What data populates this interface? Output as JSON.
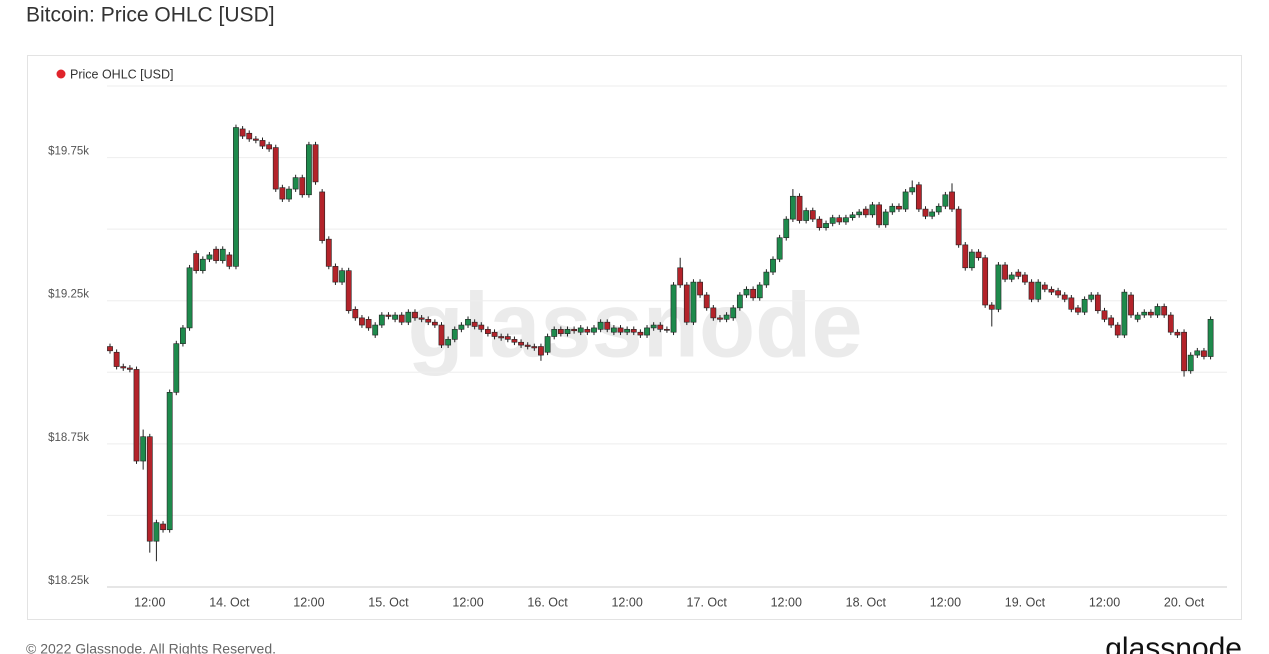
{
  "chart_data": {
    "type": "candlestick",
    "title": "Bitcoin: Price OHLC [USD]",
    "watermark": "glassnode",
    "series": [
      {
        "name": "Price OHLC [USD]",
        "color": "#e0242b"
      }
    ],
    "up_color": "#1e8a4c",
    "down_color": "#b3232a",
    "ylim": [
      18250,
      20000
    ],
    "yticks": [
      {
        "value": 18250,
        "label": "$18.25k"
      },
      {
        "value": 18750,
        "label": "$18.75k"
      },
      {
        "value": 19250,
        "label": "$19.25k"
      },
      {
        "value": 19750,
        "label": "$19.75k"
      }
    ],
    "grid": true,
    "categories": [
      null,
      null,
      null,
      null,
      null,
      null,
      "12:00",
      null,
      null,
      null,
      null,
      null,
      null,
      null,
      null,
      null,
      null,
      null,
      "14. Oct",
      null,
      null,
      null,
      null,
      null,
      null,
      null,
      null,
      null,
      null,
      null,
      "12:00",
      null,
      null,
      null,
      null,
      null,
      null,
      null,
      null,
      null,
      null,
      null,
      "15. Oct",
      null,
      null,
      null,
      null,
      null,
      null,
      null,
      null,
      null,
      null,
      null,
      "12:00",
      null,
      null,
      null,
      null,
      null,
      null,
      null,
      null,
      null,
      null,
      null,
      "16. Oct",
      null,
      null,
      null,
      null,
      null,
      null,
      null,
      null,
      null,
      null,
      null,
      "12:00",
      null,
      null,
      null,
      null,
      null,
      null,
      null,
      null,
      null,
      null,
      null,
      "17. Oct",
      null,
      null,
      null,
      null,
      null,
      null,
      null,
      null,
      null,
      null,
      null,
      "12:00",
      null,
      null,
      null,
      null,
      null,
      null,
      null,
      null,
      null,
      null,
      null,
      "18. Oct",
      null,
      null,
      null,
      null,
      null,
      null,
      null,
      null,
      null,
      null,
      null,
      "12:00",
      null,
      null,
      null,
      null,
      null,
      null,
      null,
      null,
      null,
      null,
      null,
      "19. Oct",
      null,
      null,
      null,
      null,
      null,
      null,
      null,
      null,
      null,
      null,
      null,
      "12:00",
      null,
      null,
      null,
      null,
      null,
      null,
      null,
      null,
      null,
      null,
      null,
      "20. Oct",
      null,
      null,
      null,
      null
    ],
    "open": [
      19090,
      19070,
      19020,
      19015,
      19010,
      18690,
      18775,
      18410,
      18470,
      18450,
      18930,
      19100,
      19155,
      19415,
      19355,
      19395,
      19430,
      19390,
      19410,
      19370,
      19850,
      19835,
      19815,
      19810,
      19795,
      19785,
      19645,
      19605,
      19640,
      19680,
      19620,
      19795,
      19630,
      19465,
      19370,
      19315,
      19355,
      19220,
      19190,
      19185,
      19130,
      19165,
      19200,
      19185,
      19200,
      19175,
      19210,
      19190,
      19185,
      19175,
      19165,
      19095,
      19115,
      19150,
      19165,
      19175,
      19165,
      19150,
      19140,
      19125,
      19125,
      19115,
      19105,
      19095,
      19090,
      19090,
      19070,
      19125,
      19150,
      19135,
      19150,
      19140,
      19150,
      19140,
      19150,
      19175,
      19140,
      19155,
      19140,
      19150,
      19140,
      19130,
      19155,
      19165,
      19150,
      19140,
      19365,
      19305,
      19175,
      19315,
      19270,
      19225,
      19190,
      19185,
      19190,
      19225,
      19270,
      19290,
      19260,
      19305,
      19350,
      19395,
      19470,
      19535,
      19615,
      19530,
      19565,
      19535,
      19505,
      19520,
      19540,
      19525,
      19540,
      19550,
      19570,
      19550,
      19585,
      19515,
      19560,
      19580,
      19570,
      19630,
      19655,
      19570,
      19545,
      19560,
      19580,
      19630,
      19570,
      19445,
      19365,
      19420,
      19400,
      19235,
      19220,
      19375,
      19325,
      19350,
      19340,
      19315,
      19255,
      19305,
      19290,
      19285,
      19270,
      19260,
      19225,
      19210,
      19255,
      19270,
      19215,
      19190,
      19165,
      19130,
      19270,
      19185,
      19200,
      19210,
      19200,
      19230,
      19200,
      19140,
      19140,
      19005,
      19060,
      19075,
      19055
    ],
    "high": [
      19100,
      19080,
      19030,
      19025,
      19020,
      18800,
      18785,
      18485,
      18480,
      18940,
      19110,
      19165,
      19375,
      19425,
      19405,
      19420,
      19440,
      19440,
      19420,
      19865,
      19860,
      19845,
      19825,
      19820,
      19805,
      19795,
      19655,
      19650,
      19690,
      19690,
      19805,
      19805,
      19640,
      19475,
      19380,
      19365,
      19365,
      19230,
      19200,
      19195,
      19175,
      19210,
      19210,
      19210,
      19210,
      19220,
      19220,
      19200,
      19195,
      19185,
      19175,
      19125,
      19160,
      19175,
      19195,
      19185,
      19175,
      19160,
      19150,
      19135,
      19135,
      19125,
      19115,
      19105,
      19100,
      19100,
      19135,
      19160,
      19160,
      19160,
      19160,
      19165,
      19160,
      19165,
      19185,
      19185,
      19165,
      19165,
      19160,
      19160,
      19150,
      19165,
      19175,
      19175,
      19160,
      19315,
      19400,
      19315,
      19325,
      19325,
      19280,
      19235,
      19200,
      19210,
      19235,
      19280,
      19300,
      19300,
      19315,
      19360,
      19405,
      19480,
      19545,
      19640,
      19625,
      19575,
      19575,
      19545,
      19530,
      19550,
      19550,
      19550,
      19560,
      19570,
      19580,
      19595,
      19595,
      19570,
      19590,
      19590,
      19640,
      19670,
      19665,
      19580,
      19570,
      19590,
      19630,
      19660,
      19580,
      19455,
      19430,
      19430,
      19410,
      19245,
      19385,
      19385,
      19350,
      19360,
      19350,
      19325,
      19325,
      19315,
      19300,
      19295,
      19280,
      19270,
      19235,
      19265,
      19280,
      19280,
      19225,
      19200,
      19175,
      19290,
      19280,
      19210,
      19220,
      19220,
      19240,
      19240,
      19210,
      19150,
      19150,
      19070,
      19085,
      19085,
      19195
    ],
    "low": [
      19065,
      19010,
      19005,
      19000,
      18680,
      18660,
      18370,
      18340,
      18440,
      18440,
      18920,
      19090,
      19145,
      19345,
      19345,
      19385,
      19380,
      19380,
      19360,
      19360,
      19815,
      19805,
      19800,
      19780,
      19770,
      19630,
      19595,
      19595,
      19630,
      19610,
      19610,
      19655,
      19450,
      19360,
      19305,
      19305,
      19205,
      19180,
      19155,
      19145,
      19120,
      19155,
      19185,
      19175,
      19165,
      19165,
      19180,
      19175,
      19165,
      19155,
      19085,
      19085,
      19105,
      19140,
      19155,
      19150,
      19140,
      19125,
      19115,
      19110,
      19105,
      19095,
      19085,
      19080,
      19075,
      19040,
      19060,
      19115,
      19125,
      19125,
      19135,
      19130,
      19130,
      19130,
      19140,
      19140,
      19130,
      19130,
      19130,
      19130,
      19120,
      19120,
      19145,
      19140,
      19138,
      19130,
      19295,
      19165,
      19165,
      19260,
      19215,
      19180,
      19175,
      19175,
      19180,
      19215,
      19260,
      19250,
      19250,
      19295,
      19340,
      19385,
      19460,
      19525,
      19520,
      19520,
      19525,
      19495,
      19495,
      19510,
      19515,
      19515,
      19530,
      19540,
      19540,
      19540,
      19505,
      19505,
      19550,
      19560,
      19560,
      19620,
      19560,
      19535,
      19535,
      19550,
      19570,
      19560,
      19435,
      19355,
      19355,
      19390,
      19225,
      19160,
      19210,
      19315,
      19315,
      19325,
      19305,
      19245,
      19245,
      19280,
      19270,
      19260,
      19245,
      19210,
      19200,
      19200,
      19245,
      19205,
      19175,
      19155,
      19120,
      19120,
      19190,
      19175,
      19190,
      19190,
      19190,
      19190,
      19130,
      19120,
      18985,
      18995,
      19050,
      19045,
      19045
    ],
    "close": [
      19075,
      19020,
      19015,
      19010,
      18690,
      18775,
      18410,
      18475,
      18450,
      18930,
      19100,
      19155,
      19365,
      19355,
      19395,
      19410,
      19390,
      19430,
      19370,
      19855,
      19825,
      19815,
      19810,
      19790,
      19780,
      19640,
      19605,
      19640,
      19680,
      19620,
      19795,
      19665,
      19460,
      19370,
      19315,
      19355,
      19215,
      19190,
      19165,
      19155,
      19165,
      19200,
      19195,
      19200,
      19175,
      19210,
      19190,
      19185,
      19175,
      19165,
      19095,
      19115,
      19150,
      19165,
      19185,
      19160,
      19150,
      19135,
      19125,
      19120,
      19115,
      19105,
      19095,
      19090,
      19085,
      19060,
      19125,
      19150,
      19135,
      19150,
      19145,
      19155,
      19140,
      19155,
      19175,
      19150,
      19155,
      19140,
      19150,
      19140,
      19130,
      19155,
      19165,
      19150,
      19148,
      19305,
      19305,
      19175,
      19315,
      19270,
      19225,
      19190,
      19185,
      19200,
      19225,
      19270,
      19290,
      19260,
      19305,
      19350,
      19395,
      19470,
      19535,
      19615,
      19530,
      19565,
      19535,
      19505,
      19520,
      19540,
      19525,
      19540,
      19550,
      19560,
      19550,
      19585,
      19515,
      19560,
      19580,
      19570,
      19630,
      19645,
      19570,
      19545,
      19560,
      19580,
      19620,
      19570,
      19445,
      19365,
      19420,
      19400,
      19235,
      19220,
      19375,
      19325,
      19340,
      19335,
      19315,
      19255,
      19315,
      19290,
      19280,
      19270,
      19255,
      19220,
      19210,
      19255,
      19270,
      19215,
      19185,
      19165,
      19130,
      19280,
      19200,
      19200,
      19210,
      19200,
      19230,
      19200,
      19140,
      19130,
      19005,
      19060,
      19075,
      19055,
      19185
    ]
  },
  "footer": {
    "copyright": "© 2022 Glassnode. All Rights Reserved.",
    "logo": "glassnode"
  }
}
